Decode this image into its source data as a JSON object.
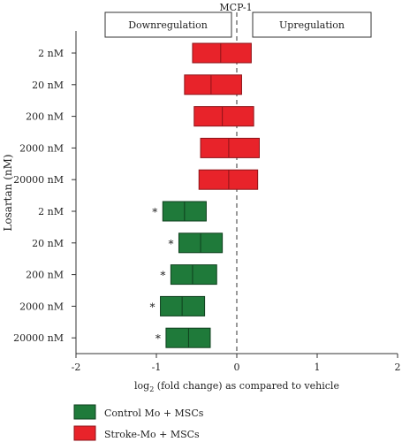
{
  "chart_data": {
    "type": "bar",
    "subtype": "floating box (range) chart",
    "title": "MCP-1",
    "region_labels": {
      "left": "Downregulation",
      "right": "Upregulation"
    },
    "ylabel": "Losartan (nM)",
    "xlabel_prefix": "log",
    "xlabel_subscript": "2",
    "xlabel_suffix": " (fold change) as compared to vehicle",
    "xlim": [
      -2,
      2
    ],
    "xticks": [
      -2,
      -1,
      0,
      1,
      2
    ],
    "reference_line_x": 0,
    "significance_marker": "*",
    "series": [
      {
        "name": "Stroke-Mo + MSCs",
        "color": "#e8232a",
        "edge": "#8e1318",
        "boxes": [
          {
            "category": "2 nM",
            "min": -0.55,
            "median": -0.2,
            "max": 0.18,
            "significant": false
          },
          {
            "category": "20 nM",
            "min": -0.65,
            "median": -0.32,
            "max": 0.06,
            "significant": false
          },
          {
            "category": "200 nM",
            "min": -0.53,
            "median": -0.18,
            "max": 0.21,
            "significant": false
          },
          {
            "category": "2000 nM",
            "min": -0.45,
            "median": -0.1,
            "max": 0.28,
            "significant": false
          },
          {
            "category": "20000 nM",
            "min": -0.47,
            "median": -0.1,
            "max": 0.26,
            "significant": false
          }
        ]
      },
      {
        "name": "Control Mo + MSCs",
        "color": "#1f7a3a",
        "edge": "#0e3f1d",
        "boxes": [
          {
            "category": "2 nM",
            "min": -0.92,
            "median": -0.65,
            "max": -0.38,
            "significant": true
          },
          {
            "category": "20 nM",
            "min": -0.72,
            "median": -0.45,
            "max": -0.18,
            "significant": true
          },
          {
            "category": "200 nM",
            "min": -0.82,
            "median": -0.55,
            "max": -0.25,
            "significant": true
          },
          {
            "category": "2000 nM",
            "min": -0.95,
            "median": -0.68,
            "max": -0.4,
            "significant": true
          },
          {
            "category": "20000 nM",
            "min": -0.88,
            "median": -0.6,
            "max": -0.33,
            "significant": true
          }
        ]
      }
    ],
    "categories": [
      "2 nM",
      "20 nM",
      "200 nM",
      "2000 nM",
      "20000 nM",
      "2 nM",
      "20 nM",
      "200 nM",
      "2000 nM",
      "20000 nM"
    ],
    "legend": [
      {
        "label": "Control Mo + MSCs",
        "color": "#1f7a3a"
      },
      {
        "label": "Stroke-Mo + MSCs",
        "color": "#e8232a"
      }
    ],
    "legend_position": "bottom-left",
    "grid": false
  }
}
